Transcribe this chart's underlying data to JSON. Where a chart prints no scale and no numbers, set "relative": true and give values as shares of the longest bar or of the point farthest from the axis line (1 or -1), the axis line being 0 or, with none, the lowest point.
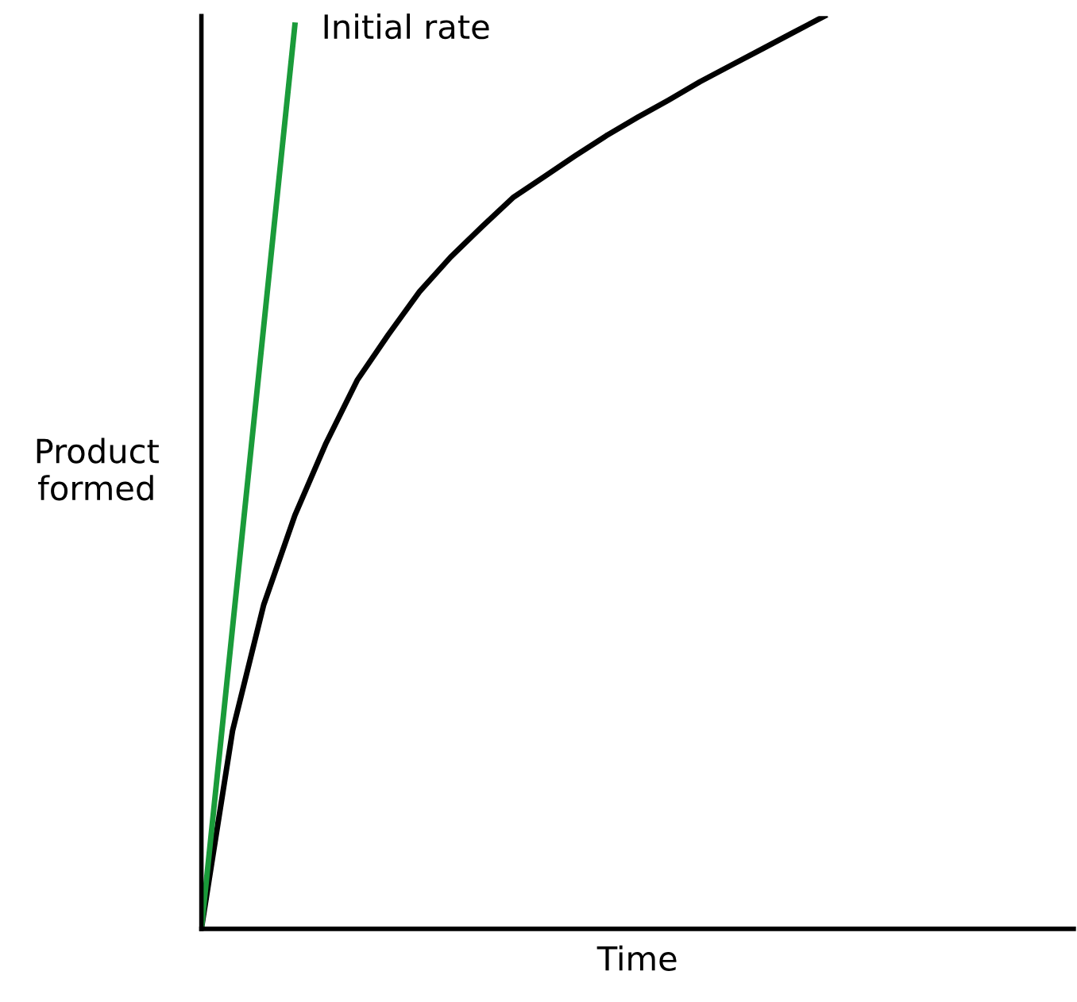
{
  "chart_data": {
    "type": "line",
    "relative": true,
    "xlabel": "Time",
    "ylabel": "Product formed",
    "marker": "none",
    "line_style": "solid",
    "annotations": [
      "Initial rate"
    ],
    "categories": [
      null,
      null,
      null,
      null,
      null,
      null,
      null,
      null,
      null,
      null,
      null,
      null,
      null,
      null,
      null,
      null,
      null,
      null,
      null,
      null,
      null,
      null,
      null,
      null,
      null,
      null,
      null,
      null,
      null
    ],
    "series": [
      {
        "color": "#000000",
        "values": [
          0,
          0.217,
          0.355,
          0.453,
          0.532,
          0.601,
          0.651,
          0.698,
          0.736,
          0.769,
          0.801,
          0.824,
          0.847,
          0.869,
          0.889,
          0.908,
          0.928,
          0.946,
          0.964,
          0.982,
          1.0,
          null,
          null,
          null,
          null,
          null,
          null,
          null,
          null
        ]
      },
      {
        "color": "#1a9b3a",
        "values": [
          0,
          0.33,
          0.66,
          0.99,
          null,
          null,
          null,
          null,
          null,
          null,
          null,
          null,
          null,
          null,
          null,
          null,
          null,
          null,
          null,
          null,
          null,
          null,
          null,
          null,
          null,
          null,
          null,
          null,
          null
        ]
      }
    ]
  }
}
